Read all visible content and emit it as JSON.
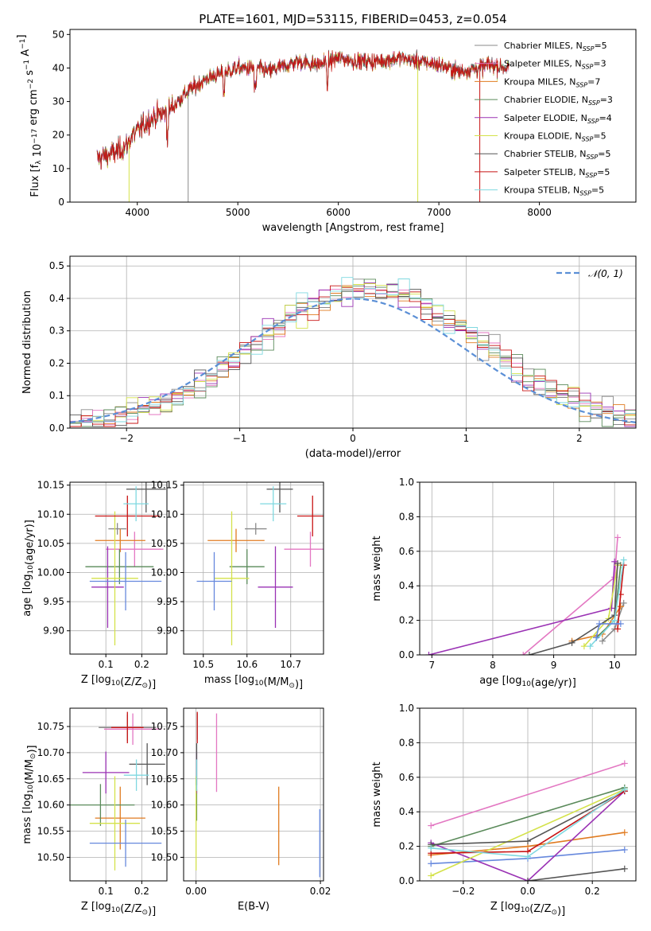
{
  "figure": {
    "title": "PLATE=1601, MJD=53115, FIBERID=0453, z=0.054"
  },
  "models": [
    {
      "name": "Chabrier MILES",
      "nssp": "5",
      "color": "#8a8a8a"
    },
    {
      "name": "Salpeter MILES",
      "nssp": "3",
      "color": "#e377c2"
    },
    {
      "name": "Kroupa MILES",
      "nssp": "7",
      "color": "#e07b20"
    },
    {
      "name": "Chabrier ELODIE",
      "nssp": "3",
      "color": "#5a8a5a"
    },
    {
      "name": "Salpeter ELODIE",
      "nssp": "4",
      "color": "#9a32b4"
    },
    {
      "name": "Kroupa ELODIE",
      "nssp": "5",
      "color": "#d4e24a"
    },
    {
      "name": "Chabrier STELIB",
      "nssp": "5",
      "color": "#555555"
    },
    {
      "name": "Salpeter STELIB",
      "nssp": "5",
      "color": "#c81414"
    },
    {
      "name": "Kroupa STELIB",
      "nssp": "5",
      "color": "#7fd8e0"
    }
  ],
  "chart_data": [
    {
      "id": "spectrum",
      "type": "line",
      "xlabel": "wavelength [Angstrom, rest frame]",
      "ylabel": "Flux [f_λ 10^-17 erg cm^-2 s^-1 A^-1]",
      "xlim": [
        3330,
        8960
      ],
      "ylim": [
        0,
        51.5
      ],
      "xticks": [
        4000,
        5000,
        6000,
        7000,
        8000
      ],
      "yticks": [
        0,
        10,
        20,
        30,
        40,
        50
      ],
      "continuum": [
        [
          3600,
          13
        ],
        [
          3700,
          14
        ],
        [
          3800,
          15
        ],
        [
          3900,
          17
        ],
        [
          3950,
          20
        ],
        [
          4000,
          21
        ],
        [
          4100,
          24
        ],
        [
          4200,
          26
        ],
        [
          4300,
          27
        ],
        [
          4400,
          30
        ],
        [
          4500,
          33
        ],
        [
          4600,
          35
        ],
        [
          4700,
          37
        ],
        [
          4800,
          38
        ],
        [
          4900,
          39
        ],
        [
          5000,
          40
        ],
        [
          5200,
          40
        ],
        [
          5300,
          39
        ],
        [
          5400,
          40
        ],
        [
          5600,
          42
        ],
        [
          5800,
          41
        ],
        [
          6000,
          43
        ],
        [
          6200,
          42
        ],
        [
          6400,
          42
        ],
        [
          6600,
          43
        ],
        [
          6800,
          42
        ],
        [
          7000,
          41
        ],
        [
          7200,
          39
        ],
        [
          7400,
          40
        ],
        [
          7500,
          41
        ],
        [
          7700,
          40
        ]
      ],
      "grid": false,
      "legend": "top-right"
    },
    {
      "id": "residual-histogram",
      "type": "line",
      "xlabel": "(data-model)/error",
      "ylabel": "Normed distribution",
      "xlim": [
        -2.5,
        2.5
      ],
      "ylim": [
        0,
        0.53
      ],
      "xticks": [
        -2,
        -1,
        0,
        1,
        2
      ],
      "yticks": [
        0.0,
        0.1,
        0.2,
        0.3,
        0.4,
        0.5
      ],
      "bin_width": 0.1,
      "reference_curve": "N(0,1)",
      "grid": true,
      "legend": "top-right"
    },
    {
      "id": "age-vs-Z",
      "type": "scatter",
      "xlabel": "Z [log10(Z/Z⊙)]",
      "ylabel": "age [log10(age/yr)]",
      "xlim": [
        0.0,
        0.27
      ],
      "ylim": [
        9.86,
        10.155
      ],
      "xticks": [
        0.1,
        0.2
      ],
      "yticks": [
        9.9,
        9.95,
        10.0,
        10.05,
        10.1,
        10.15
      ],
      "points": [
        {
          "x": 0.132,
          "y": 10.075,
          "xerr": 0.025,
          "yerr": 0.01
        },
        {
          "x": 0.18,
          "y": 10.04,
          "xerr": 0.08,
          "yerr": 0.03
        },
        {
          "x": 0.14,
          "y": 10.055,
          "xerr": 0.07,
          "yerr": 0.02
        },
        {
          "x": 0.138,
          "y": 10.01,
          "xerr": 0.095,
          "yerr": 0.03
        },
        {
          "x": 0.105,
          "y": 9.975,
          "xerr": 0.045,
          "yerr": 0.07
        },
        {
          "x": 0.125,
          "y": 9.99,
          "xerr": 0.065,
          "yerr": 0.115
        },
        {
          "x": 0.212,
          "y": 10.143,
          "xerr": 0.055,
          "yerr": 0.04
        },
        {
          "x": 0.16,
          "y": 10.097,
          "xerr": 0.09,
          "yerr": 0.035
        },
        {
          "x": 0.184,
          "y": 10.118,
          "xerr": 0.035,
          "yerr": 0.03
        },
        {
          "x": 0.155,
          "y": 9.985,
          "xerr": 0.1,
          "yerr": 0.05
        }
      ],
      "point_colors": [
        "#8a8a8a",
        "#e377c2",
        "#e07b20",
        "#5a8a5a",
        "#9a32b4",
        "#d4e24a",
        "#555555",
        "#c81414",
        "#7fd8e0",
        "#6688dd"
      ]
    },
    {
      "id": "age-vs-mass",
      "type": "scatter",
      "xlabel": "mass [log10(M/M⊙)]",
      "ylabel": "",
      "xlim": [
        10.455,
        10.775
      ],
      "ylim": [
        9.86,
        10.155
      ],
      "xticks": [
        10.5,
        10.6,
        10.7
      ],
      "yticks": [
        9.9,
        9.95,
        10.0,
        10.05,
        10.1,
        10.15
      ],
      "points": [
        {
          "x": 10.62,
          "y": 10.075,
          "xerr": 0.025,
          "yerr": 0.01
        },
        {
          "x": 10.745,
          "y": 10.04,
          "xerr": 0.06,
          "yerr": 0.03
        },
        {
          "x": 10.575,
          "y": 10.055,
          "xerr": 0.065,
          "yerr": 0.02
        },
        {
          "x": 10.6,
          "y": 10.01,
          "xerr": 0.04,
          "yerr": 0.03
        },
        {
          "x": 10.665,
          "y": 9.975,
          "xerr": 0.04,
          "yerr": 0.07
        },
        {
          "x": 10.565,
          "y": 9.99,
          "xerr": 0.04,
          "yerr": 0.115
        },
        {
          "x": 10.675,
          "y": 10.143,
          "xerr": 0.03,
          "yerr": 0.04
        },
        {
          "x": 10.75,
          "y": 10.097,
          "xerr": 0.035,
          "yerr": 0.035
        },
        {
          "x": 10.66,
          "y": 10.118,
          "xerr": 0.03,
          "yerr": 0.03
        },
        {
          "x": 10.525,
          "y": 9.985,
          "xerr": 0.04,
          "yerr": 0.05
        }
      ],
      "point_colors": [
        "#8a8a8a",
        "#e377c2",
        "#e07b20",
        "#5a8a5a",
        "#9a32b4",
        "#d4e24a",
        "#555555",
        "#c81414",
        "#7fd8e0",
        "#6688dd"
      ]
    },
    {
      "id": "mass-weight-vs-age",
      "type": "line",
      "xlabel": "age [log10(age/yr)]",
      "ylabel": "mass weight",
      "xlim": [
        6.8,
        10.35
      ],
      "ylim": [
        0,
        1.0
      ],
      "xticks": [
        7,
        8,
        9,
        10
      ],
      "yticks": [
        0.0,
        0.2,
        0.4,
        0.6,
        0.8,
        1.0
      ],
      "series": [
        {
          "values": [
            [
              9.8,
              0.08
            ],
            [
              10.0,
              0.15
            ],
            [
              10.15,
              0.3
            ]
          ]
        },
        {
          "values": [
            [
              8.5,
              0.0
            ],
            [
              10.0,
              0.45
            ],
            [
              10.05,
              0.68
            ]
          ]
        },
        {
          "values": [
            [
              9.3,
              0.08
            ],
            [
              9.8,
              0.12
            ],
            [
              10.1,
              0.28
            ]
          ]
        },
        {
          "values": [
            [
              9.7,
              0.1
            ],
            [
              10.0,
              0.2
            ],
            [
              10.1,
              0.52
            ]
          ]
        },
        {
          "values": [
            [
              6.95,
              0.0
            ],
            [
              9.95,
              0.27
            ],
            [
              10.0,
              0.54
            ]
          ]
        },
        {
          "values": [
            [
              9.5,
              0.05
            ],
            [
              9.9,
              0.21
            ],
            [
              10.05,
              0.52
            ]
          ]
        },
        {
          "values": [
            [
              8.6,
              0.0
            ],
            [
              9.3,
              0.07
            ],
            [
              10.0,
              0.23
            ],
            [
              10.05,
              0.53
            ]
          ]
        },
        {
          "values": [
            [
              10.05,
              0.15
            ],
            [
              10.1,
              0.35
            ],
            [
              10.15,
              0.52
            ]
          ]
        },
        {
          "values": [
            [
              9.6,
              0.05
            ],
            [
              10.0,
              0.2
            ],
            [
              10.15,
              0.55
            ]
          ]
        },
        {
          "values": [
            [
              9.7,
              0.1
            ],
            [
              9.75,
              0.18
            ],
            [
              10.1,
              0.18
            ]
          ]
        }
      ],
      "series_colors": [
        "#8a8a8a",
        "#e377c2",
        "#e07b20",
        "#5a8a5a",
        "#9a32b4",
        "#d4e24a",
        "#555555",
        "#c81414",
        "#7fd8e0",
        "#6688dd"
      ],
      "grid": true
    },
    {
      "id": "mass-vs-Z",
      "type": "scatter",
      "xlabel": "Z [log10(Z/Z⊙)]",
      "ylabel": "mass [log10(M/M⊙)]",
      "xlim": [
        0.0,
        0.27
      ],
      "ylim": [
        10.455,
        10.785
      ],
      "xticks": [
        0.1,
        0.2
      ],
      "yticks": [
        10.5,
        10.55,
        10.6,
        10.65,
        10.7,
        10.75
      ],
      "points": [
        {
          "x": 0.16,
          "y": 10.748,
          "xerr": 0.08,
          "yerr": 0.025
        },
        {
          "x": 0.175,
          "y": 10.745,
          "xerr": 0.08,
          "yerr": 0.03
        },
        {
          "x": 0.14,
          "y": 10.575,
          "xerr": 0.07,
          "yerr": 0.06
        },
        {
          "x": 0.085,
          "y": 10.6,
          "xerr": 0.095,
          "yerr": 0.04
        },
        {
          "x": 0.1,
          "y": 10.662,
          "xerr": 0.065,
          "yerr": 0.04
        },
        {
          "x": 0.125,
          "y": 10.565,
          "xerr": 0.07,
          "yerr": 0.09
        },
        {
          "x": 0.215,
          "y": 10.678,
          "xerr": 0.05,
          "yerr": 0.04
        },
        {
          "x": 0.16,
          "y": 10.748,
          "xerr": 0.045,
          "yerr": 0.03
        },
        {
          "x": 0.185,
          "y": 10.657,
          "xerr": 0.035,
          "yerr": 0.03
        },
        {
          "x": 0.155,
          "y": 10.527,
          "xerr": 0.1,
          "yerr": 0.045
        }
      ],
      "point_colors": [
        "#8a8a8a",
        "#e377c2",
        "#e07b20",
        "#5a8a5a",
        "#9a32b4",
        "#d4e24a",
        "#555555",
        "#c81414",
        "#7fd8e0",
        "#6688dd"
      ]
    },
    {
      "id": "mass-vs-EBV",
      "type": "scatter",
      "xlabel": "E(B-V)",
      "ylabel": "",
      "xlim": [
        -0.002,
        0.0205
      ],
      "ylim": [
        10.455,
        10.785
      ],
      "xticks": [
        0.0,
        0.02
      ],
      "yticks": [
        10.5,
        10.55,
        10.6,
        10.65,
        10.7,
        10.75
      ],
      "points": [
        {
          "x": 0.0002,
          "y": 10.75,
          "xerr": 0.0,
          "yerr": 0.025
        },
        {
          "x": 0.0033,
          "y": 10.7,
          "xerr": 0.0,
          "yerr": 0.075
        },
        {
          "x": 0.0133,
          "y": 10.56,
          "xerr": 0.0,
          "yerr": 0.075
        },
        {
          "x": 0.0001,
          "y": 10.6,
          "xerr": 0.0,
          "yerr": 0.03
        },
        {
          "x": 0.0001,
          "y": 10.662,
          "xerr": 0.0,
          "yerr": 0.04
        },
        {
          "x": 0.0,
          "y": 10.565,
          "xerr": 0.0,
          "yerr": 0.09
        },
        {
          "x": 0.0001,
          "y": 10.678,
          "xerr": 0.0,
          "yerr": 0.04
        },
        {
          "x": 0.0002,
          "y": 10.748,
          "xerr": 0.0,
          "yerr": 0.03
        },
        {
          "x": 0.0001,
          "y": 10.657,
          "xerr": 0.0,
          "yerr": 0.03
        },
        {
          "x": 0.0199,
          "y": 10.527,
          "xerr": 0.0,
          "yerr": 0.065
        }
      ],
      "point_colors": [
        "#8a8a8a",
        "#e377c2",
        "#e07b20",
        "#5a8a5a",
        "#9a32b4",
        "#d4e24a",
        "#555555",
        "#c81414",
        "#7fd8e0",
        "#6688dd"
      ]
    },
    {
      "id": "mass-weight-vs-Z",
      "type": "line",
      "xlabel": "Z [log10(Z/Z⊙)]",
      "ylabel": "mass weight",
      "xlim": [
        -0.335,
        0.335
      ],
      "ylim": [
        0,
        1.0
      ],
      "xticks": [
        -0.2,
        0.0,
        0.2
      ],
      "yticks": [
        0.0,
        0.2,
        0.4,
        0.6,
        0.8,
        1.0
      ],
      "series": [
        {
          "values": [
            [
              -0.3,
              0.1
            ],
            [
              0.0,
              0.13
            ],
            [
              0.3,
              0.18
            ]
          ]
        },
        {
          "values": [
            [
              -0.3,
              0.32
            ],
            [
              0.3,
              0.68
            ]
          ]
        },
        {
          "values": [
            [
              -0.3,
              0.15
            ],
            [
              0.0,
              0.2
            ],
            [
              0.3,
              0.28
            ]
          ]
        },
        {
          "values": [
            [
              -0.3,
              0.2
            ],
            [
              0.3,
              0.54
            ]
          ]
        },
        {
          "values": [
            [
              -0.3,
              0.22
            ],
            [
              0.0,
              0.0
            ],
            [
              0.3,
              0.52
            ]
          ]
        },
        {
          "values": [
            [
              -0.3,
              0.03
            ],
            [
              0.3,
              0.53
            ]
          ]
        },
        {
          "values": [
            [
              -0.3,
              0.21
            ],
            [
              0.0,
              0.23
            ],
            [
              0.3,
              0.52
            ]
          ]
        },
        {
          "values": [
            [
              -0.3,
              0.16
            ],
            [
              0.0,
              0.17
            ],
            [
              0.3,
              0.52
            ]
          ]
        },
        {
          "values": [
            [
              -0.3,
              0.19
            ],
            [
              0.0,
              0.14
            ],
            [
              0.3,
              0.53
            ]
          ]
        },
        {
          "values": [
            [
              0.0,
              0.0
            ],
            [
              0.3,
              0.07
            ]
          ]
        }
      ],
      "series_colors": [
        "#6688dd",
        "#e377c2",
        "#e07b20",
        "#5a8a5a",
        "#9a32b4",
        "#d4e24a",
        "#555555",
        "#c81414",
        "#7fd8e0",
        "#555555"
      ],
      "grid": true
    }
  ]
}
